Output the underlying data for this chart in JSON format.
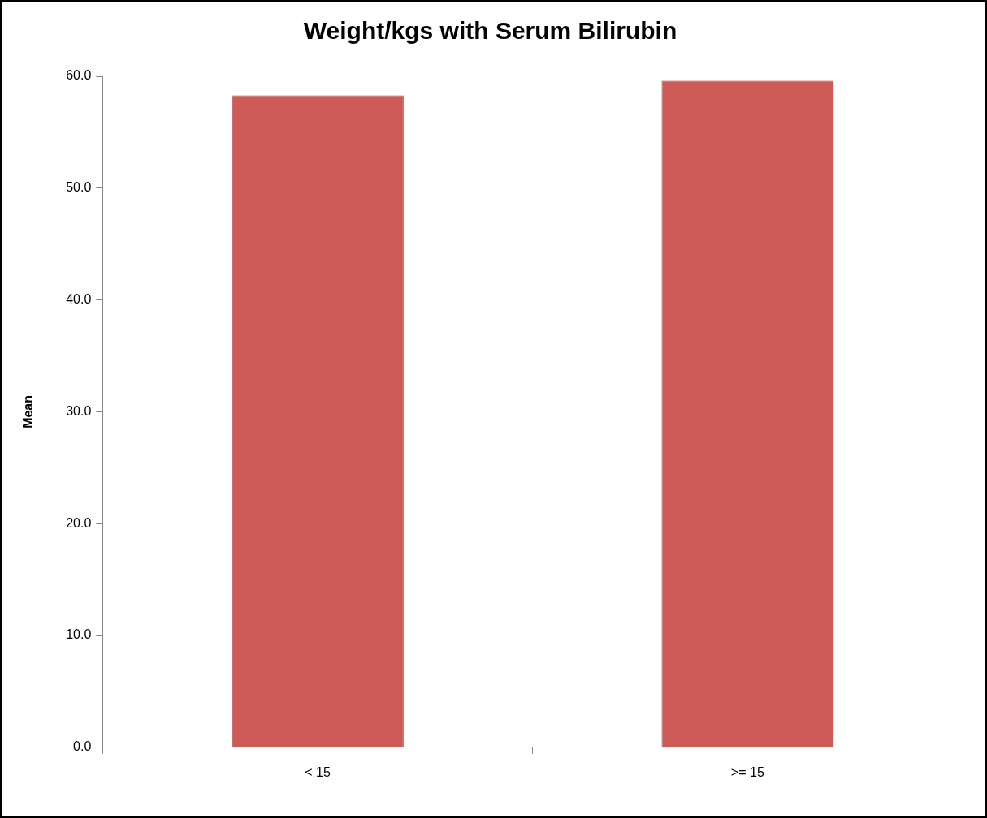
{
  "chart_data": {
    "type": "bar",
    "title": "Weight/kgs with Serum Bilirubin",
    "ylabel": "Mean",
    "categories": [
      "< 15",
      ">= 15"
    ],
    "values": [
      58.3,
      59.6
    ],
    "color": "#cd5a57",
    "ylim": [
      0,
      60
    ],
    "yticks": [
      {
        "value": 0,
        "label": "0.0"
      },
      {
        "value": 10,
        "label": "10.0"
      },
      {
        "value": 20,
        "label": "20.0"
      },
      {
        "value": 30,
        "label": "30.0"
      },
      {
        "value": 40,
        "label": "40.0"
      },
      {
        "value": 50,
        "label": "50.0"
      },
      {
        "value": 60,
        "label": "60.0"
      }
    ]
  }
}
